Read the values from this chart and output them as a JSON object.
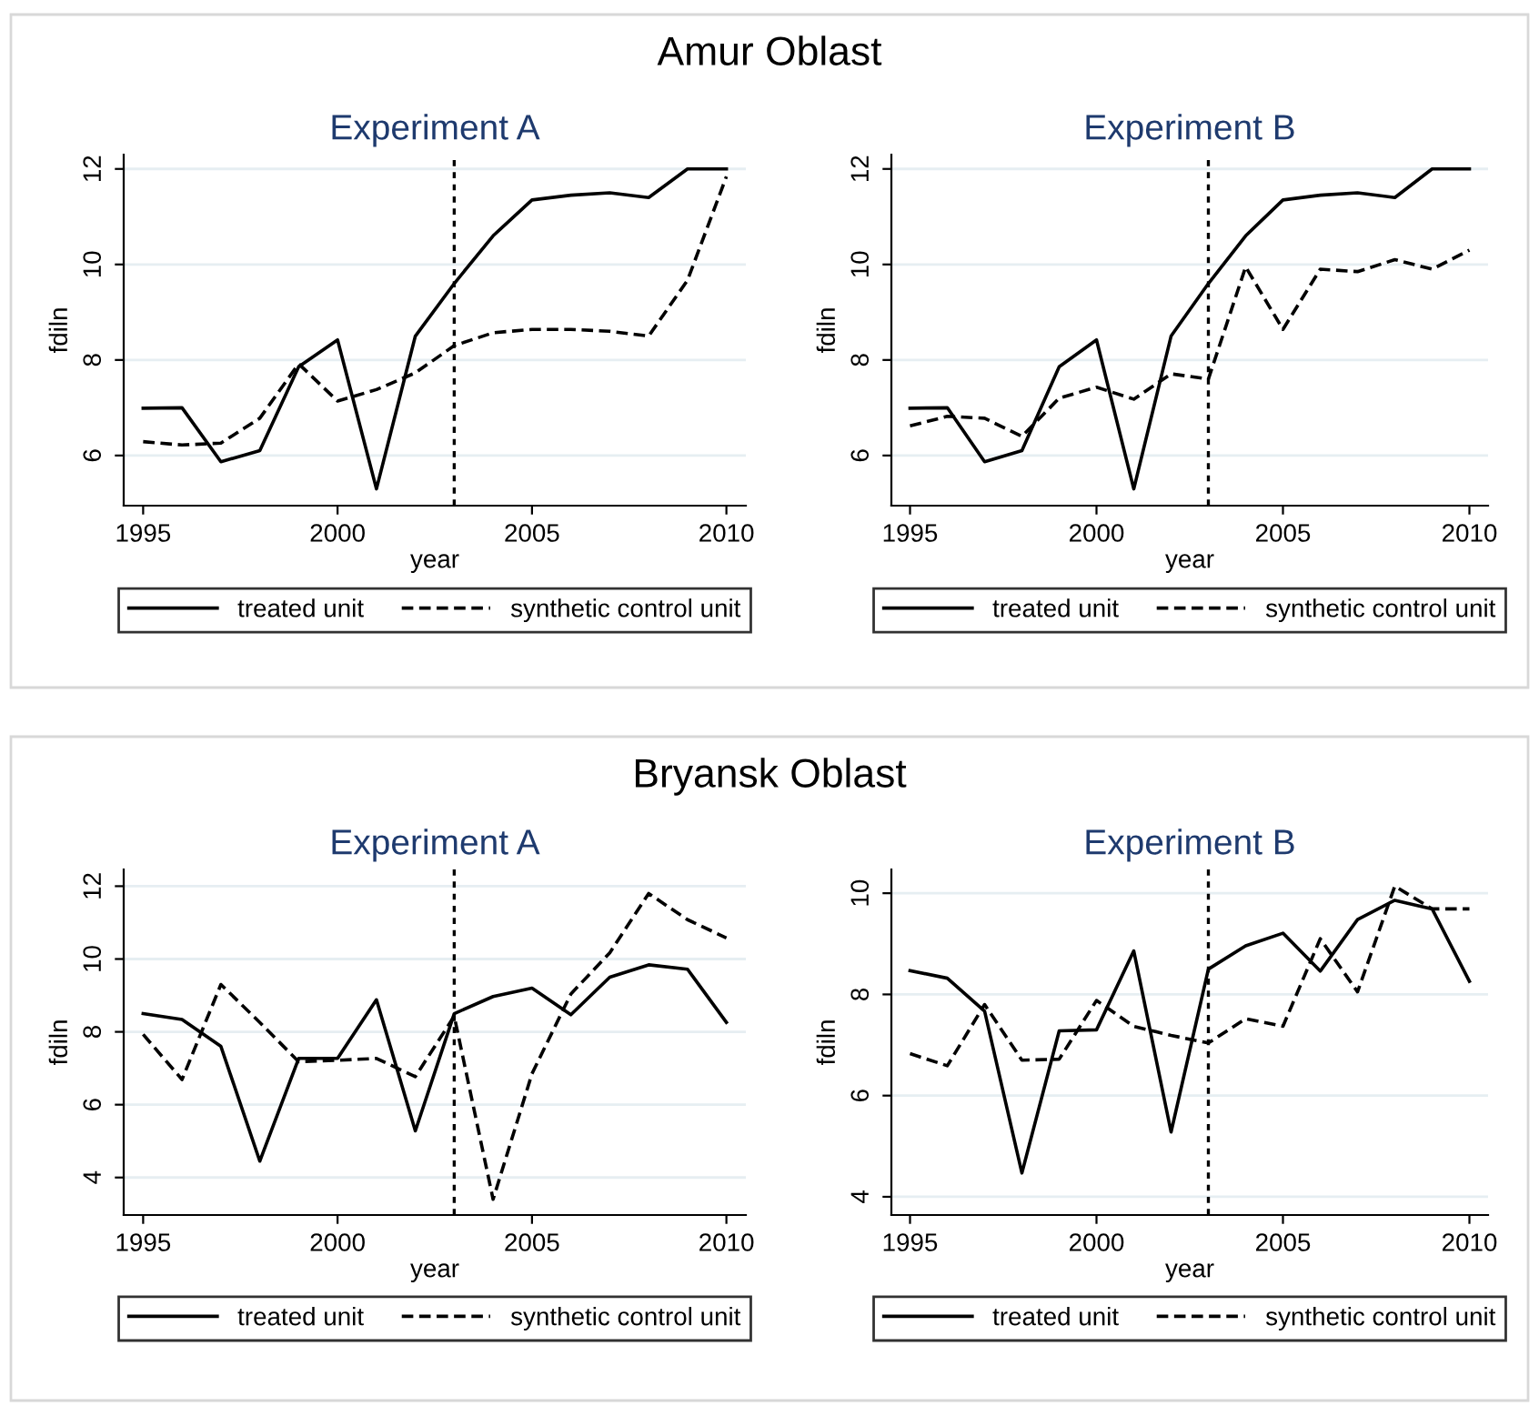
{
  "chart_data": [
    {
      "type": "line",
      "title": "Experiment A",
      "annotations": [
        "Amur Oblast"
      ],
      "xlabel": "year",
      "ylabel": "fdiln",
      "x": [
        1995,
        1996,
        1997,
        1998,
        1999,
        2000,
        2001,
        2002,
        2003,
        2004,
        2005,
        2006,
        2007,
        2008,
        2009,
        2010
      ],
      "series": [
        {
          "name": "treated unit",
          "color": "#000000",
          "line_style": "solid",
          "values": [
            6.99,
            7.0,
            5.87,
            6.1,
            7.86,
            8.42,
            5.3,
            8.5,
            9.6,
            10.6,
            11.35,
            11.45,
            11.5,
            11.4,
            12.0,
            12.0
          ]
        },
        {
          "name": "synthetic control unit",
          "color": "#000000",
          "line_style": "dashed",
          "values": [
            6.29,
            6.22,
            6.26,
            6.78,
            7.92,
            7.14,
            7.38,
            7.73,
            8.3,
            8.57,
            8.64,
            8.64,
            8.6,
            8.5,
            9.67,
            11.84
          ]
        }
      ],
      "xlim": [
        1994.5,
        2010.5
      ],
      "xticks": [
        1995,
        2000,
        2005,
        2010
      ],
      "ylim": [
        4.95,
        12.3
      ],
      "yticks": [
        6,
        8,
        10,
        12
      ],
      "ref_lines": [
        {
          "axis": "x",
          "value": 2003,
          "color": "#000000",
          "line_style": "dotted"
        }
      ],
      "grid": "y",
      "legend": "bottom",
      "marker": "none"
    },
    {
      "type": "line",
      "title": "Experiment B",
      "xlabel": "year",
      "ylabel": "fdiln",
      "x": [
        1995,
        1996,
        1997,
        1998,
        1999,
        2000,
        2001,
        2002,
        2003,
        2004,
        2005,
        2006,
        2007,
        2008,
        2009,
        2010
      ],
      "series": [
        {
          "name": "treated unit",
          "color": "#000000",
          "line_style": "solid",
          "values": [
            6.99,
            7.0,
            5.87,
            6.1,
            7.86,
            8.42,
            5.3,
            8.5,
            9.6,
            10.6,
            11.35,
            11.45,
            11.5,
            11.4,
            12.0,
            12.0
          ]
        },
        {
          "name": "synthetic control unit",
          "color": "#000000",
          "line_style": "dashed",
          "values": [
            6.62,
            6.82,
            6.78,
            6.4,
            7.2,
            7.43,
            7.18,
            7.71,
            7.6,
            9.95,
            8.64,
            9.9,
            9.85,
            10.1,
            9.9,
            10.3
          ]
        }
      ],
      "xlim": [
        1994.5,
        2010.5
      ],
      "xticks": [
        1995,
        2000,
        2005,
        2010
      ],
      "ylim": [
        4.95,
        12.3
      ],
      "yticks": [
        6,
        8,
        10,
        12
      ],
      "ref_lines": [
        {
          "axis": "x",
          "value": 2003,
          "color": "#000000",
          "line_style": "dotted"
        }
      ],
      "grid": "y",
      "legend": "bottom",
      "marker": "none"
    },
    {
      "type": "line",
      "title": "Experiment A",
      "annotations": [
        "Bryansk Oblast"
      ],
      "xlabel": "year",
      "ylabel": "fdiln",
      "x": [
        1995,
        1996,
        1997,
        1998,
        1999,
        2000,
        2001,
        2002,
        2003,
        2004,
        2005,
        2006,
        2007,
        2008,
        2009,
        2010
      ],
      "series": [
        {
          "name": "treated unit",
          "color": "#000000",
          "line_style": "solid",
          "values": [
            8.5,
            8.34,
            7.6,
            4.45,
            7.27,
            7.27,
            8.88,
            5.28,
            8.5,
            8.97,
            9.2,
            8.47,
            9.5,
            9.84,
            9.72,
            8.26
          ]
        },
        {
          "name": "synthetic control unit",
          "color": "#000000",
          "line_style": "dashed",
          "values": [
            7.93,
            6.69,
            9.3,
            8.26,
            7.18,
            7.22,
            7.27,
            6.77,
            8.43,
            3.4,
            6.85,
            9.04,
            10.17,
            11.8,
            11.08,
            10.58
          ]
        }
      ],
      "xlim": [
        1994.5,
        2010.5
      ],
      "xticks": [
        1995,
        2000,
        2005,
        2010
      ],
      "ylim": [
        2.97,
        12.46
      ],
      "yticks": [
        4,
        6,
        8,
        10,
        12
      ],
      "ref_lines": [
        {
          "axis": "x",
          "value": 2003,
          "color": "#000000",
          "line_style": "dotted"
        }
      ],
      "grid": "y",
      "legend": "bottom",
      "marker": "none"
    },
    {
      "type": "line",
      "title": "Experiment B",
      "xlabel": "year",
      "ylabel": "fdiln",
      "x": [
        1995,
        1996,
        1997,
        1998,
        1999,
        2000,
        2001,
        2002,
        2003,
        2004,
        2005,
        2006,
        2007,
        2008,
        2009,
        2010
      ],
      "series": [
        {
          "name": "treated unit",
          "color": "#000000",
          "line_style": "solid",
          "values": [
            8.47,
            8.32,
            7.67,
            4.47,
            7.28,
            7.3,
            8.86,
            5.28,
            8.5,
            8.96,
            9.21,
            8.46,
            9.48,
            9.86,
            9.69,
            8.26
          ]
        },
        {
          "name": "synthetic control unit",
          "color": "#000000",
          "line_style": "dashed",
          "values": [
            6.83,
            6.59,
            7.8,
            6.7,
            6.72,
            7.88,
            7.37,
            7.19,
            7.04,
            7.52,
            7.37,
            9.1,
            8.05,
            10.14,
            9.69,
            9.69
          ]
        }
      ],
      "xlim": [
        1994.5,
        2010.5
      ],
      "xticks": [
        1995,
        2000,
        2005,
        2010
      ],
      "ylim": [
        3.64,
        10.47
      ],
      "yticks": [
        4,
        6,
        8,
        10
      ],
      "ref_lines": [
        {
          "axis": "x",
          "value": 2003,
          "color": "#000000",
          "line_style": "dotted"
        }
      ],
      "grid": "y",
      "legend": "bottom",
      "marker": "none"
    }
  ]
}
